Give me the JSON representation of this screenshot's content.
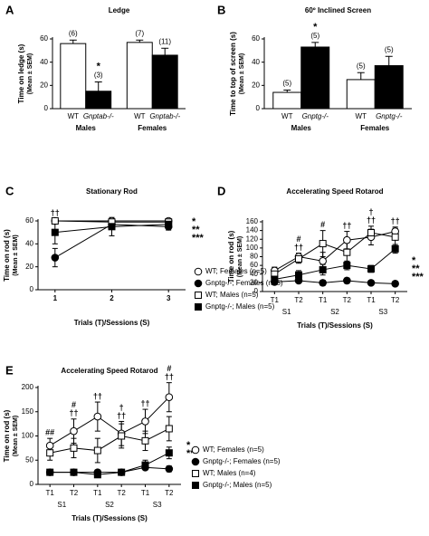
{
  "chart_data": [
    {
      "type": "bar",
      "panel": "A",
      "title": "Ledge",
      "ylabel": "Time on ledge (s)",
      "ylabel2": "(Mean ± SEM)",
      "categories": [
        "WT",
        "Gnptab-/-",
        "WT",
        "Gnptab-/-"
      ],
      "groups": [
        "Males",
        "Females"
      ],
      "values": [
        56,
        15,
        57,
        46
      ],
      "errors": [
        3,
        8,
        2,
        6
      ],
      "colors": [
        "#ffffff",
        "#000000",
        "#ffffff",
        "#000000"
      ],
      "n_labels": [
        "(6)",
        "(3)",
        "(7)",
        "(11)"
      ],
      "annotations": [
        [],
        [
          "*"
        ],
        [],
        []
      ],
      "ylim": [
        0,
        60
      ],
      "yticks": [
        0,
        20,
        40,
        60
      ]
    },
    {
      "type": "bar",
      "panel": "B",
      "title": "60º Inclined Screen",
      "ylabel": "Time to top of screen (s)",
      "ylabel2": "(Mean ± SEM)",
      "categories": [
        "WT",
        "Gnptg-/-",
        "WT",
        "Gnptg-/-"
      ],
      "groups": [
        "Males",
        "Females"
      ],
      "values": [
        14,
        53,
        25,
        37
      ],
      "errors": [
        2,
        4,
        6,
        8
      ],
      "colors": [
        "#ffffff",
        "#000000",
        "#ffffff",
        "#000000"
      ],
      "n_labels": [
        "(5)",
        "(5)",
        "(5)",
        "(5)"
      ],
      "annotations": [
        [],
        [
          "*"
        ],
        [],
        []
      ],
      "ylim": [
        0,
        60
      ],
      "yticks": [
        0,
        20,
        40,
        60
      ]
    },
    {
      "type": "line",
      "panel": "C",
      "title": "Stationary Rod",
      "ylabel": "Time on rod (s)",
      "ylabel2": "(Mean ± SEM)",
      "xlabel": "Trials (T)/Sessions (S)",
      "x": [
        1,
        2,
        3
      ],
      "xlim": [
        0.7,
        3.3
      ],
      "xticks": [
        1,
        2,
        3
      ],
      "ylim": [
        0,
        60
      ],
      "yticks": [
        0,
        20,
        40,
        60
      ],
      "annotations": [
        [
          "††"
        ],
        [],
        []
      ],
      "significance": [
        "*",
        "**",
        "***"
      ],
      "series": [
        {
          "name": "WT; Females (n=5)",
          "marker": "circle",
          "color": "#ffffff",
          "values": [
            60,
            60,
            60
          ],
          "errors": [
            1,
            2,
            2
          ]
        },
        {
          "name": "Gnptg-/-; Females (n=5)",
          "marker": "circle",
          "color": "#000000",
          "values": [
            28,
            57,
            55
          ],
          "errors": [
            8,
            3,
            3
          ]
        },
        {
          "name": "WT; Males (n=5)",
          "marker": "square",
          "color": "#ffffff",
          "values": [
            60,
            59,
            59
          ],
          "errors": [
            2,
            2,
            2
          ]
        },
        {
          "name": "Gnptg-/-; Males (n=5)",
          "marker": "square",
          "color": "#000000",
          "values": [
            50,
            55,
            57
          ],
          "errors": [
            10,
            8,
            4
          ]
        }
      ]
    },
    {
      "type": "line",
      "panel": "D",
      "title": "Accelerating Speed Rotarod",
      "ylabel": "Time on rod (s)",
      "ylabel2": "(Mean ± SEM)",
      "xlabel": "Trials (T)/Sessions (S)",
      "categories": [
        "T1",
        "T2",
        "T1",
        "T2",
        "T1",
        "T2"
      ],
      "sessions": [
        "S1",
        "S2",
        "S3"
      ],
      "ylim": [
        0,
        160
      ],
      "yticks": [
        0,
        20,
        40,
        60,
        80,
        100,
        120,
        140,
        160
      ],
      "annotations": [
        [],
        [
          "#",
          "††"
        ],
        [
          "#"
        ],
        [
          "††"
        ],
        [
          "†",
          "††"
        ],
        [
          "††"
        ]
      ],
      "significance": [
        "*",
        "**",
        "***"
      ],
      "series": [
        {
          "name": "WT; Females (n=5)",
          "marker": "circle",
          "color": "#ffffff",
          "values": [
            48,
            80,
            70,
            118,
            125,
            138
          ],
          "errors": [
            8,
            8,
            20,
            20,
            18,
            10
          ]
        },
        {
          "name": "Gnptg-/-; Females (n=5)",
          "marker": "circle",
          "color": "#000000",
          "values": [
            22,
            25,
            20,
            25,
            20,
            18
          ],
          "errors": [
            5,
            5,
            6,
            6,
            5,
            5
          ]
        },
        {
          "name": "WT; Males (n=5)",
          "marker": "square",
          "color": "#ffffff",
          "values": [
            40,
            75,
            110,
            90,
            135,
            125
          ],
          "errors": [
            15,
            10,
            30,
            22,
            15,
            20
          ]
        },
        {
          "name": "Gnptg-/-; Males (n=5)",
          "marker": "square",
          "color": "#000000",
          "values": [
            28,
            38,
            50,
            60,
            52,
            98
          ],
          "errors": [
            6,
            10,
            12,
            10,
            8,
            10
          ]
        }
      ]
    },
    {
      "type": "line",
      "panel": "E",
      "title": "Accelerating Speed Rotarod",
      "ylabel": "Time on rod (s)",
      "ylabel2": "(Mean ± SEM)",
      "xlabel": "Trials (T)/Sessions (S)",
      "categories": [
        "T1",
        "T2",
        "T1",
        "T2",
        "T1",
        "T2"
      ],
      "sessions": [
        "S1",
        "S2",
        "S3"
      ],
      "ylim": [
        0,
        200
      ],
      "yticks": [
        0,
        50,
        100,
        150,
        200
      ],
      "annotations": [
        [
          "##"
        ],
        [
          "#",
          "††"
        ],
        [
          "††"
        ],
        [
          "†",
          "††"
        ],
        [
          "††"
        ],
        [
          "#",
          "††"
        ]
      ],
      "significance": [
        "*",
        "**"
      ],
      "series": [
        {
          "name": "WT; Females (n=5)",
          "marker": "circle",
          "color": "#ffffff",
          "values": [
            80,
            110,
            140,
            105,
            130,
            180
          ],
          "errors": [
            15,
            25,
            30,
            25,
            25,
            30
          ]
        },
        {
          "name": "Gnptg-/-; Females (n=5)",
          "marker": "circle",
          "color": "#000000",
          "values": [
            25,
            25,
            25,
            25,
            35,
            32
          ],
          "errors": [
            5,
            5,
            5,
            5,
            5,
            6
          ]
        },
        {
          "name": "WT; Males (n=4)",
          "marker": "square",
          "color": "#ffffff",
          "values": [
            65,
            75,
            70,
            100,
            90,
            115
          ],
          "errors": [
            15,
            20,
            25,
            25,
            20,
            25
          ]
        },
        {
          "name": "Gnptg-/-; Males (n=5)",
          "marker": "square",
          "color": "#000000",
          "values": [
            25,
            25,
            20,
            25,
            40,
            65
          ],
          "errors": [
            5,
            5,
            5,
            5,
            10,
            12
          ]
        }
      ]
    }
  ]
}
